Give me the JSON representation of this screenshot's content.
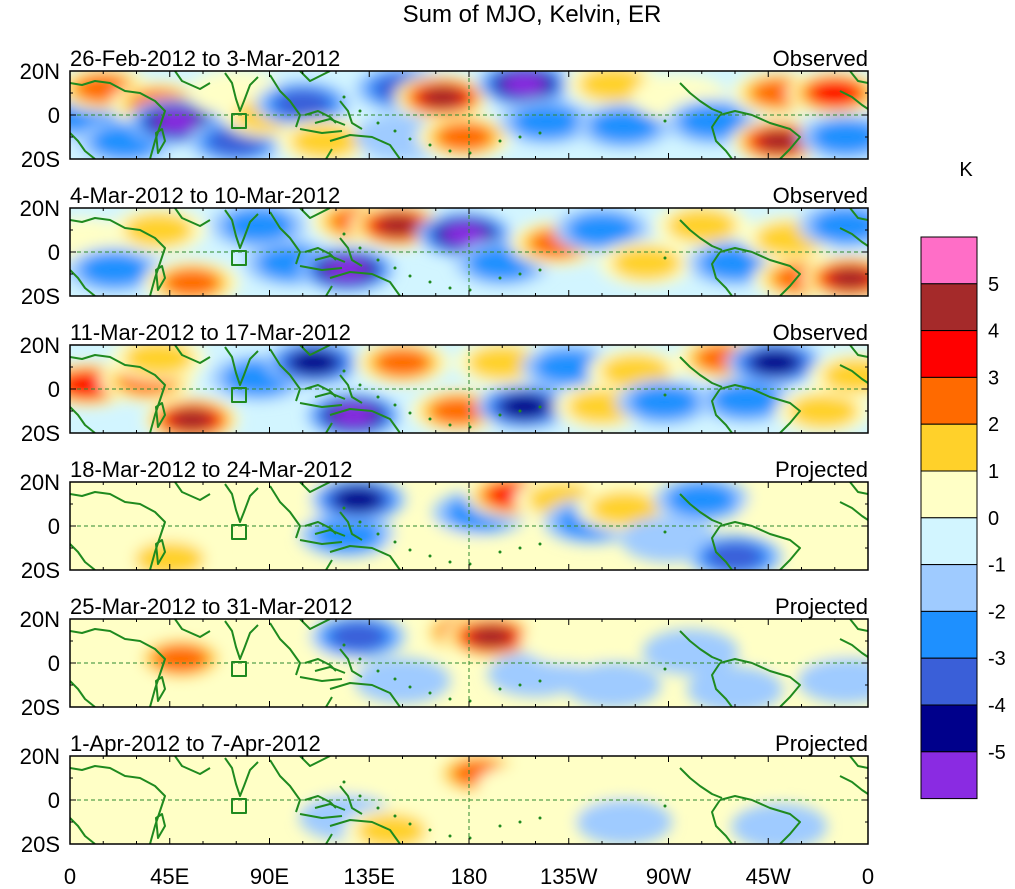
{
  "title": "Sum of MJO, Kelvin, ER",
  "colorbar": {
    "unit": "K",
    "labels": [
      "5",
      "4",
      "3",
      "2",
      "1",
      "0",
      "-1",
      "-2",
      "-3",
      "-4",
      "-5"
    ],
    "colors": [
      "#ff6ec7",
      "#a52a2a",
      "#ff0000",
      "#ff6a00",
      "#ffd12a",
      "#ffffc6",
      "#d2f5ff",
      "#9fcbff",
      "#1e90ff",
      "#3a5fd8",
      "#00008b",
      "#8a2be2"
    ]
  },
  "lat_labels": [
    "20N",
    "0",
    "20S"
  ],
  "lon_labels": [
    "0",
    "45E",
    "90E",
    "135E",
    "180",
    "135W",
    "90W",
    "45W",
    "0"
  ],
  "panels": [
    {
      "period": "26-Feb-2012 to 3-Mar-2012",
      "status": "Observed"
    },
    {
      "period": "4-Mar-2012 to 10-Mar-2012",
      "status": "Observed"
    },
    {
      "period": "11-Mar-2012 to 17-Mar-2012",
      "status": "Observed"
    },
    {
      "period": "18-Mar-2012 to 24-Mar-2012",
      "status": "Projected"
    },
    {
      "period": "25-Mar-2012 to 31-Mar-2012",
      "status": "Projected"
    },
    {
      "period": "1-Apr-2012 to 7-Apr-2012",
      "status": "Projected"
    }
  ],
  "anomaly_blobs": [
    [
      {
        "lon": 5,
        "lat": 0,
        "v": -2
      },
      {
        "lon": 15,
        "lat": 12,
        "v": 3
      },
      {
        "lon": 25,
        "lat": -12,
        "v": -2
      },
      {
        "lon": 40,
        "lat": 5,
        "v": 3
      },
      {
        "lon": 48,
        "lat": -3,
        "v": -5
      },
      {
        "lon": 75,
        "lat": 10,
        "v": 1
      },
      {
        "lon": 75,
        "lat": -12,
        "v": -3
      },
      {
        "lon": 90,
        "lat": 0,
        "v": 2
      },
      {
        "lon": 105,
        "lat": 5,
        "v": -3
      },
      {
        "lon": 115,
        "lat": -12,
        "v": 2
      },
      {
        "lon": 150,
        "lat": 12,
        "v": -3
      },
      {
        "lon": 150,
        "lat": -10,
        "v": -1
      },
      {
        "lon": 168,
        "lat": 8,
        "v": 5
      },
      {
        "lon": 178,
        "lat": -10,
        "v": 3
      },
      {
        "lon": 205,
        "lat": 14,
        "v": -5
      },
      {
        "lon": 215,
        "lat": -3,
        "v": -2
      },
      {
        "lon": 245,
        "lat": 14,
        "v": 2
      },
      {
        "lon": 250,
        "lat": -5,
        "v": -2
      },
      {
        "lon": 275,
        "lat": 8,
        "v": 1
      },
      {
        "lon": 290,
        "lat": -3,
        "v": -2
      },
      {
        "lon": 320,
        "lat": -12,
        "v": 5
      },
      {
        "lon": 320,
        "lat": 10,
        "v": 3
      },
      {
        "lon": 345,
        "lat": 10,
        "v": 4
      },
      {
        "lon": 350,
        "lat": -10,
        "v": -2
      }
    ],
    [
      {
        "lon": 5,
        "lat": 5,
        "v": 1
      },
      {
        "lon": 20,
        "lat": -8,
        "v": -2
      },
      {
        "lon": 40,
        "lat": 10,
        "v": 2
      },
      {
        "lon": 55,
        "lat": -14,
        "v": 3
      },
      {
        "lon": 85,
        "lat": 12,
        "v": -2
      },
      {
        "lon": 100,
        "lat": -5,
        "v": -2
      },
      {
        "lon": 125,
        "lat": -8,
        "v": -5
      },
      {
        "lon": 130,
        "lat": 14,
        "v": 3
      },
      {
        "lon": 148,
        "lat": 12,
        "v": 5
      },
      {
        "lon": 178,
        "lat": 8,
        "v": -5
      },
      {
        "lon": 195,
        "lat": -5,
        "v": -2
      },
      {
        "lon": 220,
        "lat": 4,
        "v": 3
      },
      {
        "lon": 240,
        "lat": 10,
        "v": -2
      },
      {
        "lon": 260,
        "lat": -5,
        "v": 2
      },
      {
        "lon": 285,
        "lat": 12,
        "v": 2
      },
      {
        "lon": 300,
        "lat": -5,
        "v": -2
      },
      {
        "lon": 325,
        "lat": 6,
        "v": 2
      },
      {
        "lon": 330,
        "lat": -12,
        "v": 3
      },
      {
        "lon": 352,
        "lat": -12,
        "v": 5
      },
      {
        "lon": 350,
        "lat": 12,
        "v": -2
      }
    ],
    [
      {
        "lon": 8,
        "lat": 2,
        "v": 4
      },
      {
        "lon": 35,
        "lat": 4,
        "v": 3
      },
      {
        "lon": 55,
        "lat": -14,
        "v": 5
      },
      {
        "lon": 40,
        "lat": 14,
        "v": 2
      },
      {
        "lon": 85,
        "lat": 5,
        "v": -2
      },
      {
        "lon": 110,
        "lat": 12,
        "v": -4
      },
      {
        "lon": 128,
        "lat": -12,
        "v": -5
      },
      {
        "lon": 150,
        "lat": 12,
        "v": 3
      },
      {
        "lon": 175,
        "lat": -10,
        "v": 3
      },
      {
        "lon": 195,
        "lat": 12,
        "v": 2
      },
      {
        "lon": 205,
        "lat": -8,
        "v": -4
      },
      {
        "lon": 225,
        "lat": 10,
        "v": -2
      },
      {
        "lon": 240,
        "lat": -8,
        "v": 2
      },
      {
        "lon": 255,
        "lat": 8,
        "v": 2
      },
      {
        "lon": 268,
        "lat": -6,
        "v": -2
      },
      {
        "lon": 295,
        "lat": 14,
        "v": 3
      },
      {
        "lon": 305,
        "lat": -5,
        "v": -2
      },
      {
        "lon": 318,
        "lat": 12,
        "v": -4
      },
      {
        "lon": 340,
        "lat": -10,
        "v": 2
      },
      {
        "lon": 355,
        "lat": 6,
        "v": 2
      }
    ],
    [
      {
        "lon": 15,
        "lat": 8,
        "v": 1
      },
      {
        "lon": 40,
        "lat": -4,
        "v": 1
      },
      {
        "lon": 45,
        "lat": -15,
        "v": 2
      },
      {
        "lon": 70,
        "lat": 8,
        "v": 0
      },
      {
        "lon": 105,
        "lat": 12,
        "v": 1
      },
      {
        "lon": 125,
        "lat": -4,
        "v": -2
      },
      {
        "lon": 130,
        "lat": 12,
        "v": -4
      },
      {
        "lon": 165,
        "lat": -10,
        "v": 1
      },
      {
        "lon": 185,
        "lat": 6,
        "v": -2
      },
      {
        "lon": 200,
        "lat": 14,
        "v": 4
      },
      {
        "lon": 222,
        "lat": 12,
        "v": 2
      },
      {
        "lon": 235,
        "lat": 2,
        "v": -2
      },
      {
        "lon": 250,
        "lat": 8,
        "v": 2
      },
      {
        "lon": 270,
        "lat": -6,
        "v": -1
      },
      {
        "lon": 285,
        "lat": 12,
        "v": -2
      },
      {
        "lon": 300,
        "lat": -14,
        "v": -3
      },
      {
        "lon": 325,
        "lat": 6,
        "v": 1
      },
      {
        "lon": 350,
        "lat": -6,
        "v": 1
      }
    ],
    [
      {
        "lon": 20,
        "lat": -10,
        "v": 1
      },
      {
        "lon": 45,
        "lat": 2,
        "v": 2
      },
      {
        "lon": 50,
        "lat": 2,
        "v": 3
      },
      {
        "lon": 90,
        "lat": 12,
        "v": 1
      },
      {
        "lon": 110,
        "lat": 0,
        "v": 1
      },
      {
        "lon": 130,
        "lat": 12,
        "v": -3
      },
      {
        "lon": 150,
        "lat": -8,
        "v": -1
      },
      {
        "lon": 180,
        "lat": 14,
        "v": 4
      },
      {
        "lon": 190,
        "lat": 12,
        "v": 5
      },
      {
        "lon": 210,
        "lat": -5,
        "v": -1
      },
      {
        "lon": 225,
        "lat": 10,
        "v": 1
      },
      {
        "lon": 245,
        "lat": -10,
        "v": -1
      },
      {
        "lon": 280,
        "lat": 5,
        "v": -1
      },
      {
        "lon": 300,
        "lat": -12,
        "v": -1
      },
      {
        "lon": 330,
        "lat": 8,
        "v": 1
      },
      {
        "lon": 350,
        "lat": -8,
        "v": -1
      }
    ],
    [
      {
        "lon": 15,
        "lat": -10,
        "v": 0
      },
      {
        "lon": 55,
        "lat": 8,
        "v": 1
      },
      {
        "lon": 95,
        "lat": 8,
        "v": 1
      },
      {
        "lon": 120,
        "lat": 12,
        "v": 1
      },
      {
        "lon": 125,
        "lat": -8,
        "v": -1
      },
      {
        "lon": 145,
        "lat": -14,
        "v": 2
      },
      {
        "lon": 185,
        "lat": 12,
        "v": 3
      },
      {
        "lon": 205,
        "lat": 6,
        "v": 1
      },
      {
        "lon": 230,
        "lat": 0,
        "v": 1
      },
      {
        "lon": 250,
        "lat": -10,
        "v": -1
      },
      {
        "lon": 265,
        "lat": 12,
        "v": 1
      },
      {
        "lon": 295,
        "lat": 8,
        "v": 1
      },
      {
        "lon": 320,
        "lat": -12,
        "v": -1
      },
      {
        "lon": 345,
        "lat": 4,
        "v": 0
      }
    ]
  ]
}
